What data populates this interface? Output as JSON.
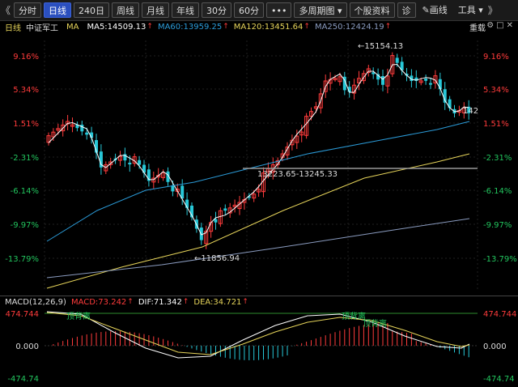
{
  "toolbar": {
    "nav_left": "《",
    "tabs": [
      {
        "label": "分时",
        "active": false
      },
      {
        "label": "日线",
        "active": true
      },
      {
        "label": "240日",
        "active": false
      },
      {
        "label": "周线",
        "active": false
      },
      {
        "label": "月线",
        "active": false
      },
      {
        "label": "年线",
        "active": false
      },
      {
        "label": "30分",
        "active": false
      },
      {
        "label": "60分",
        "active": false
      }
    ],
    "more_label": "•••",
    "multi_period_label": "多周期图",
    "stock_info_label": "个股资料",
    "diagnose_label": "诊",
    "draw_label": "画线",
    "tools_label": "工具",
    "nav_right": "》"
  },
  "info": {
    "period": "日线",
    "name": "中证军工",
    "ma_label": "MA",
    "ma5": "MA5:14509.13",
    "ma60": "MA60:13959.25",
    "ma120": "MA120:13451.64",
    "ma250": "MA250:12424.19",
    "up_arrow": "↑",
    "fq_label": "重载"
  },
  "colors": {
    "up": "#ff3b3b",
    "down": "#27c8d8",
    "ma5": "#ffffff",
    "ma60": "#2b9bd8",
    "ma120": "#e6d45a",
    "ma250": "#8a9bbf",
    "dif": "#ffffff",
    "dea": "#e6d45a"
  },
  "price_axis": {
    "left_labels": [
      "9.16%",
      "5.34%",
      "1.51%",
      "-2.31%",
      "-6.14%",
      "-9.97%",
      "-13.79%"
    ],
    "right_labels": [
      "9.16%",
      "5.34%",
      "1.51%",
      "-2.31%",
      "-6.14%",
      "-9.97%",
      "-13.79%"
    ]
  },
  "annotations": {
    "high": "←15154.13",
    "low": "←11856.94",
    "range": "13223.65-13245.33",
    "count": "142"
  },
  "macd": {
    "params": "MACD(12,26,9)",
    "macd": "MACD:73.242",
    "dif": "DIF:71.342",
    "dea": "DEA:34.721",
    "axis_top": "474.744",
    "axis_mid": "0.000",
    "axis_bottom": "-474.74",
    "signal_top": "顶背离",
    "signal_mid": "顶背离",
    "signal_right": "顶背离"
  }
}
